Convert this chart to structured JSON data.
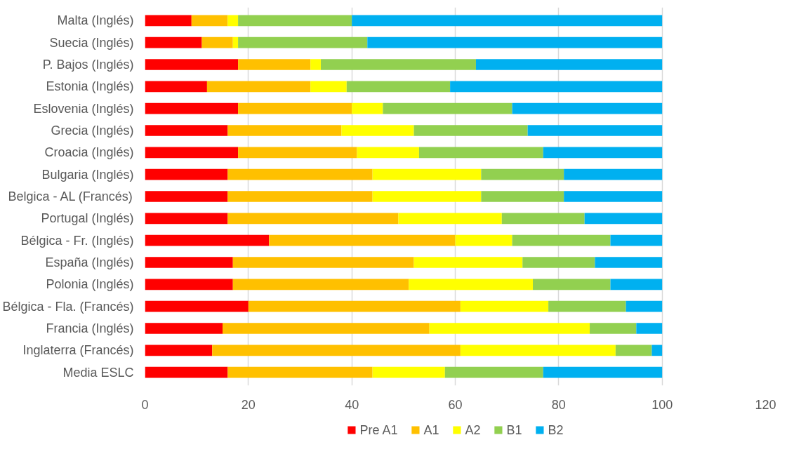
{
  "chart_data": {
    "type": "bar",
    "orientation": "horizontal",
    "stacked": true,
    "categories": [
      "Malta (Inglés)",
      "Suecia (Inglés)",
      "P. Bajos (Inglés)",
      "Estonia (Inglés)",
      "Eslovenia (Inglés)",
      "Grecia (Inglés)",
      "Croacia (Inglés)",
      "Bulgaria (Inglés)",
      "Belgica - AL (Francés)",
      "Portugal (Inglés)",
      "Bélgica - Fr. (Inglés)",
      "España (Inglés)",
      "Polonia (Inglés)",
      "Bélgica - Fla. (Francés)",
      "Francia (Inglés)",
      "Inglaterra (Francés)",
      "Media ESLC"
    ],
    "series": [
      {
        "name": "Pre A1",
        "color": "#ff0000",
        "values": [
          9,
          11,
          18,
          12,
          18,
          16,
          18,
          16,
          16,
          16,
          24,
          17,
          17,
          20,
          15,
          13,
          16
        ]
      },
      {
        "name": "A1",
        "color": "#ffc000",
        "values": [
          7,
          6,
          14,
          20,
          22,
          22,
          23,
          28,
          28,
          33,
          36,
          35,
          34,
          41,
          40,
          48,
          28
        ]
      },
      {
        "name": "A2",
        "color": "#ffff00",
        "values": [
          2,
          1,
          2,
          7,
          6,
          14,
          12,
          21,
          21,
          20,
          11,
          21,
          24,
          17,
          31,
          30,
          14
        ]
      },
      {
        "name": "B1",
        "color": "#92d050",
        "values": [
          22,
          25,
          30,
          20,
          25,
          22,
          24,
          16,
          16,
          16,
          19,
          14,
          15,
          15,
          9,
          7,
          19
        ]
      },
      {
        "name": "B2",
        "color": "#00b0f0",
        "values": [
          60,
          57,
          36,
          41,
          29,
          26,
          23,
          19,
          19,
          15,
          10,
          13,
          10,
          7,
          5,
          2,
          23
        ]
      }
    ],
    "xlim": [
      0,
      120
    ],
    "xticks": [
      0,
      20,
      40,
      60,
      80,
      100,
      120
    ],
    "grid": "x",
    "legend": "bottom"
  }
}
